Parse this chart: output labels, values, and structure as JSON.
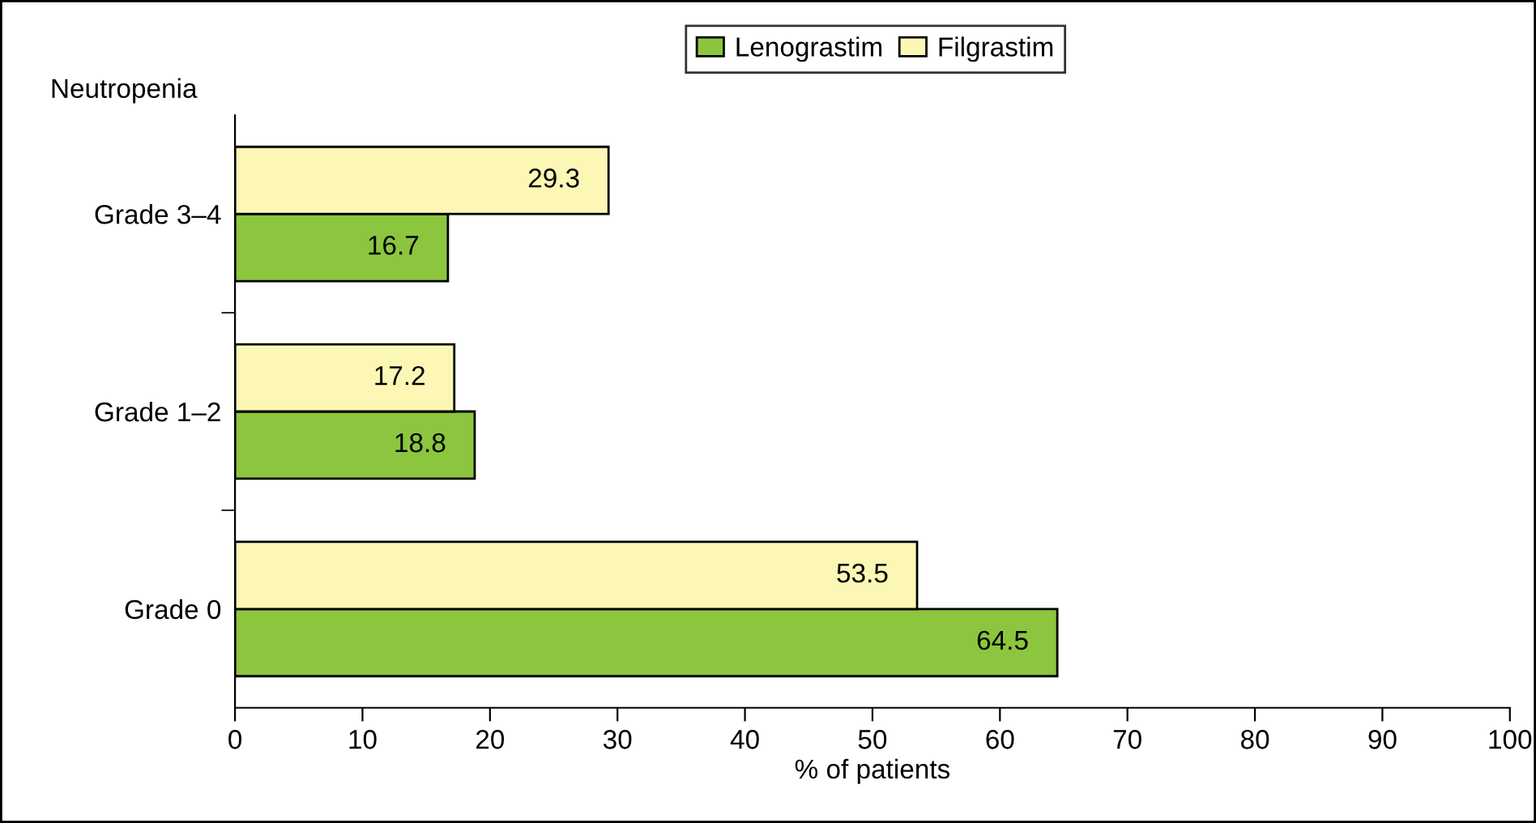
{
  "chart_data": {
    "type": "bar",
    "orientation": "horizontal",
    "ylabel": "Neutropenia",
    "xlabel": "% of patients",
    "categories": [
      "Grade 3–4",
      "Grade 1–2",
      "Grade 0"
    ],
    "series": [
      {
        "name": "Lenograstim",
        "color": "#8cc63e",
        "values": [
          16.7,
          18.8,
          64.5
        ]
      },
      {
        "name": "Filgrastim",
        "color": "#fdf7b6",
        "values": [
          29.3,
          17.2,
          53.5
        ]
      }
    ],
    "xlim": [
      0,
      100
    ],
    "xticks": [
      0,
      10,
      20,
      30,
      40,
      50,
      60,
      70,
      80,
      90,
      100
    ],
    "data_labels": true,
    "legend": "top",
    "grid": false
  }
}
